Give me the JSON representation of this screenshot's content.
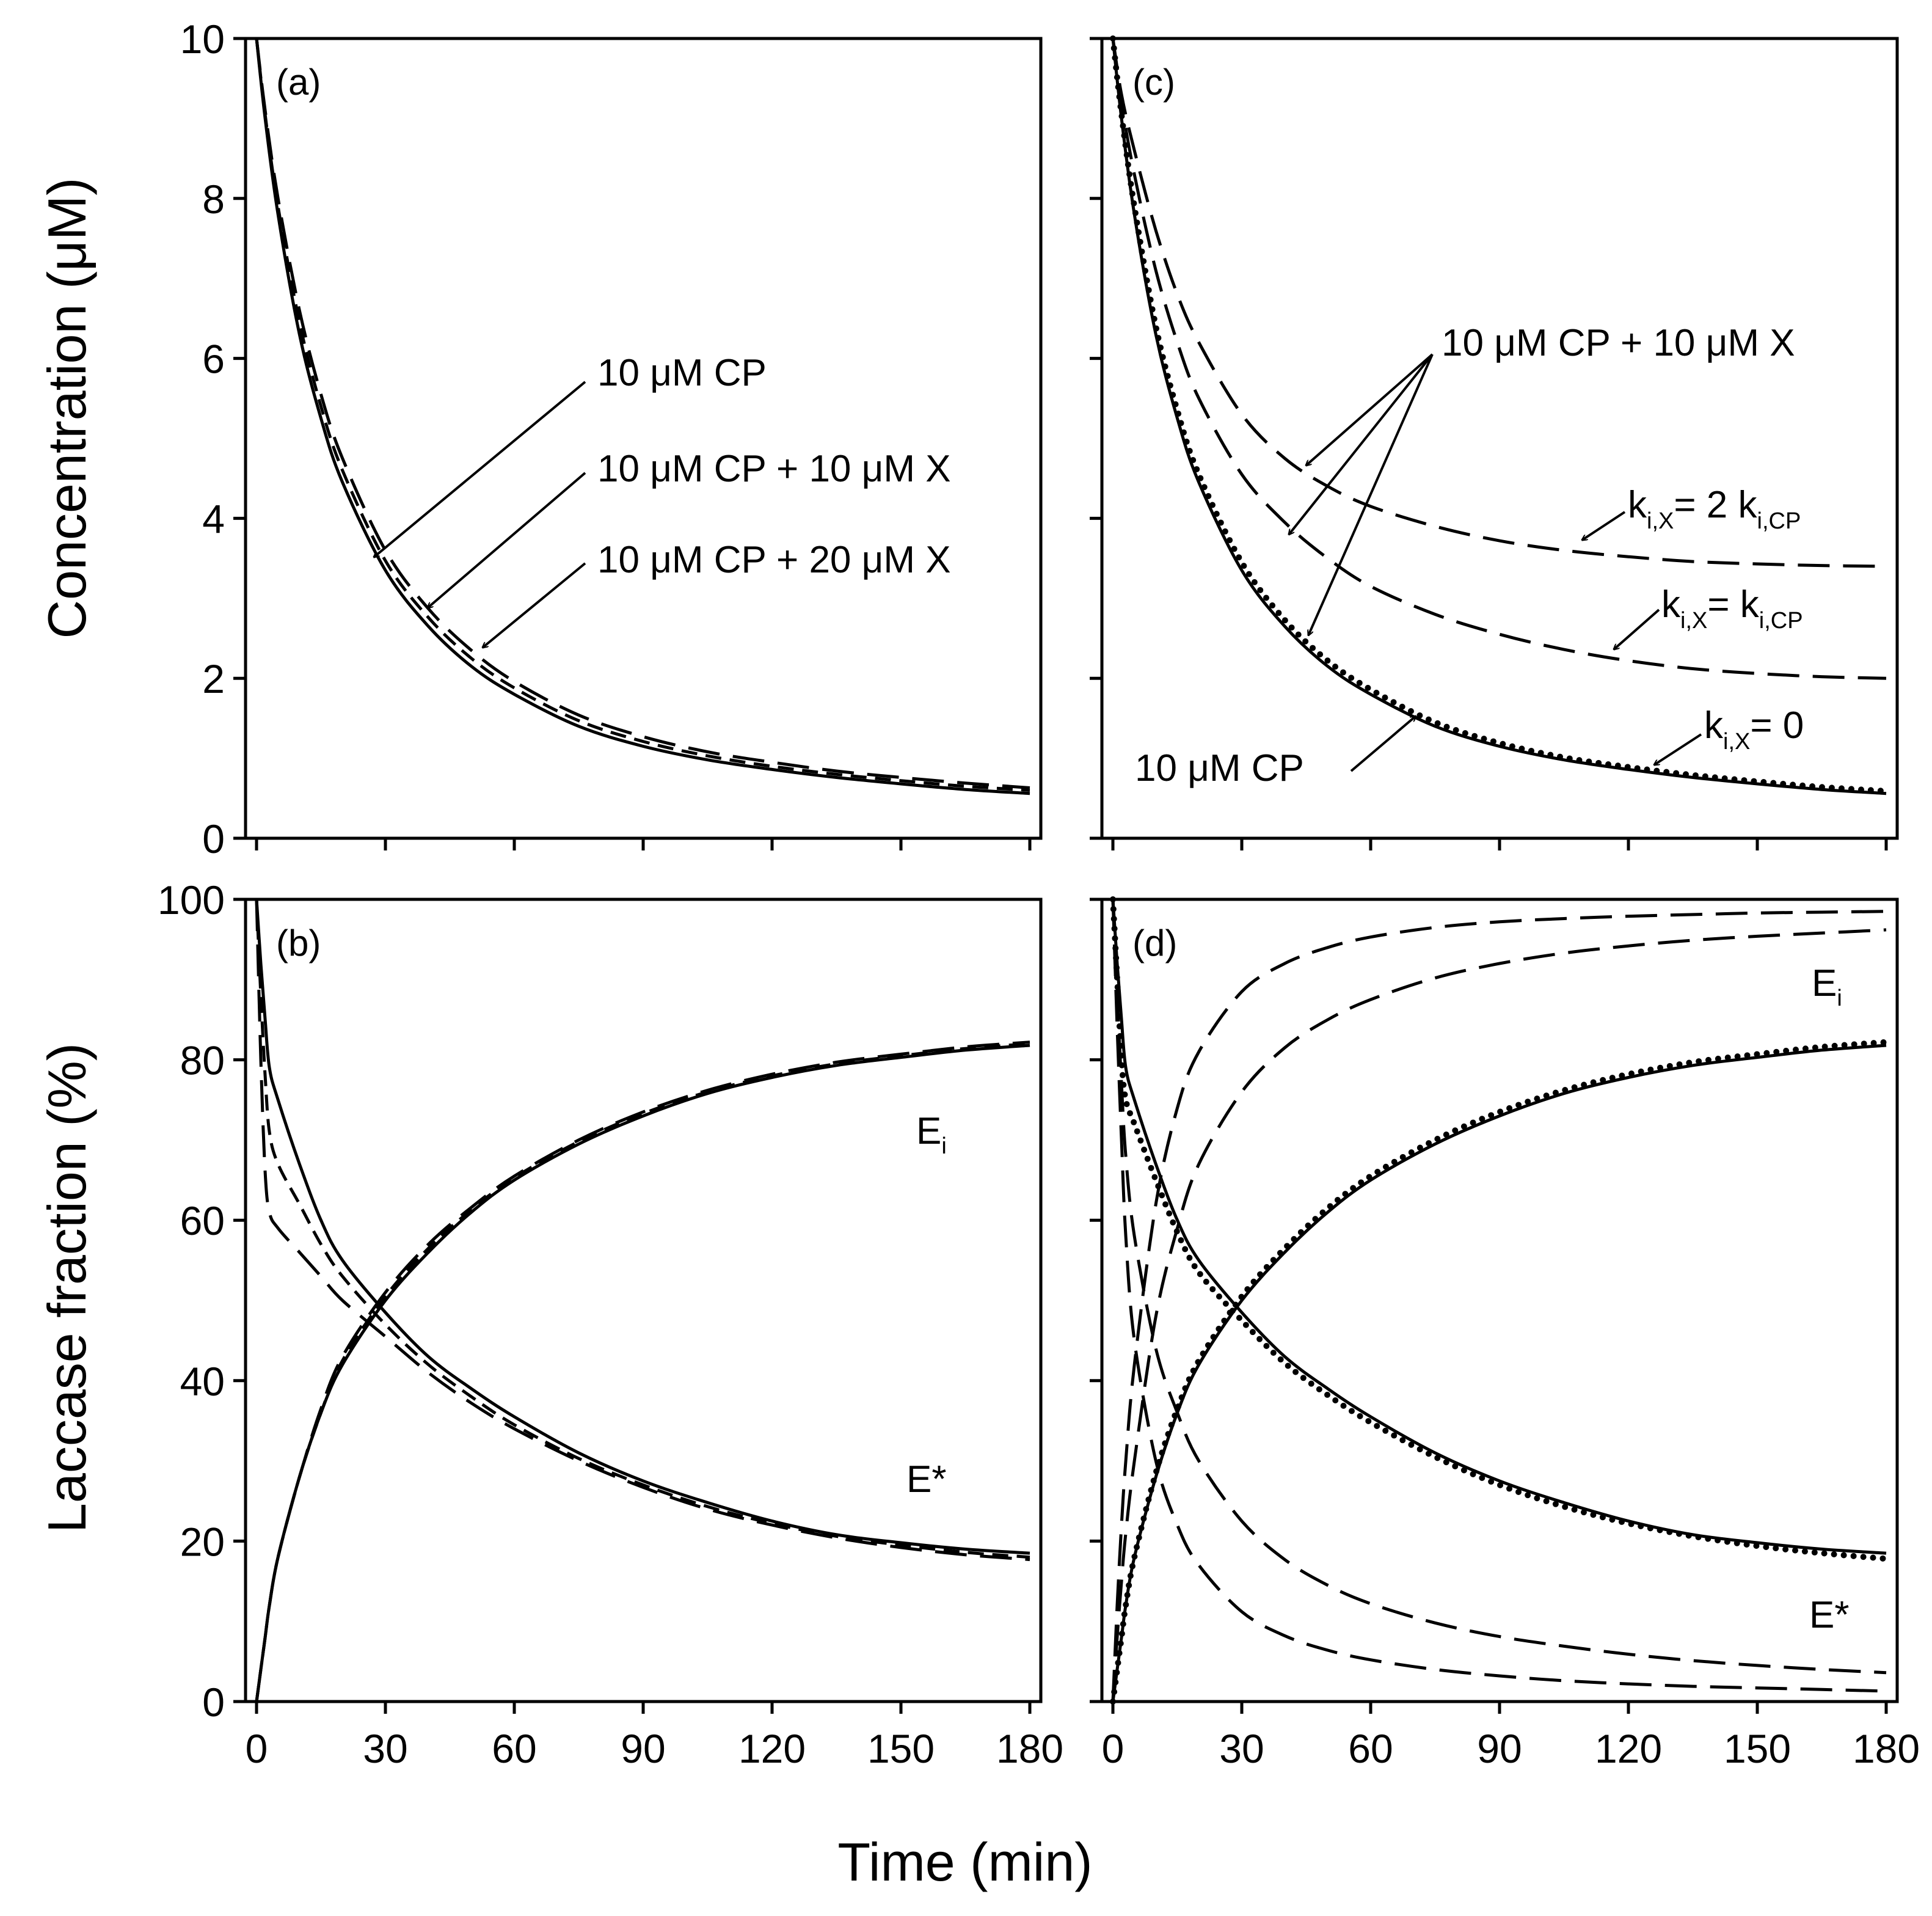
{
  "chart_data": [
    {
      "panel": "(a)",
      "type": "line",
      "ylabel": "Concentration (μM)",
      "xlim": [
        0,
        180
      ],
      "ylim": [
        0,
        10
      ],
      "xticks": [
        0,
        30,
        60,
        90,
        120,
        150,
        180
      ],
      "yticks": [
        0,
        2,
        4,
        6,
        8,
        10
      ],
      "x": [
        0,
        2,
        5,
        10,
        15,
        20,
        30,
        40,
        50,
        60,
        75,
        90,
        105,
        120,
        135,
        150,
        165,
        180
      ],
      "series": [
        {
          "name": "10 μM CP",
          "style": "solid",
          "values": [
            10,
            9.0,
            7.8,
            6.3,
            5.25,
            4.45,
            3.35,
            2.65,
            2.15,
            1.8,
            1.4,
            1.15,
            0.98,
            0.86,
            0.76,
            0.68,
            0.61,
            0.56
          ]
        },
        {
          "name": "10 μM CP + 10 μM X",
          "style": "dashed",
          "values": [
            10,
            9.05,
            7.9,
            6.45,
            5.4,
            4.6,
            3.47,
            2.76,
            2.25,
            1.88,
            1.47,
            1.21,
            1.03,
            0.9,
            0.8,
            0.72,
            0.65,
            0.6
          ]
        },
        {
          "name": "10 μM CP + 20 μM X",
          "style": "longdash",
          "values": [
            10,
            9.1,
            8.0,
            6.6,
            5.55,
            4.75,
            3.6,
            2.87,
            2.35,
            1.96,
            1.54,
            1.27,
            1.08,
            0.95,
            0.84,
            0.76,
            0.69,
            0.63
          ]
        }
      ],
      "annotations": [
        "10 μM CP",
        "10 μM CP + 10 μM X",
        "10 μM CP + 20 μM X"
      ]
    },
    {
      "panel": "(b)",
      "type": "line",
      "ylabel": "Laccase fraction (%)",
      "xlabel": "Time (min)",
      "xlim": [
        0,
        180
      ],
      "ylim": [
        0,
        100
      ],
      "xticks": [
        0,
        30,
        60,
        90,
        120,
        150,
        180
      ],
      "yticks": [
        0,
        20,
        40,
        60,
        80,
        100
      ],
      "x": [
        0,
        1,
        2,
        3,
        5,
        10,
        15,
        20,
        30,
        40,
        50,
        60,
        75,
        90,
        105,
        120,
        135,
        150,
        165,
        180
      ],
      "series": [
        {
          "name": "E_i (10 μM CP)",
          "style": "solid",
          "values": [
            0,
            4,
            8,
            12,
            18,
            28,
            36,
            42,
            50,
            56,
            61,
            65,
            69.5,
            73,
            75.8,
            77.8,
            79.3,
            80.3,
            81.2,
            81.8
          ]
        },
        {
          "name": "E_i (10 μM CP + 10 μM X)",
          "style": "dashed",
          "values": [
            0,
            4,
            8,
            12,
            18,
            28,
            36,
            42.5,
            50.5,
            56.5,
            61.3,
            65.3,
            69.8,
            73.3,
            76,
            78,
            79.5,
            80.5,
            81.4,
            82
          ]
        },
        {
          "name": "E_i (10 μM CP + 20 μM X)",
          "style": "longdash",
          "values": [
            0,
            4,
            8,
            12,
            18,
            28,
            36.5,
            43,
            51,
            57,
            61.6,
            65.5,
            70,
            73.5,
            76.2,
            78.2,
            79.7,
            80.7,
            81.6,
            82.2
          ]
        },
        {
          "name": "E* (10 μM CP)",
          "style": "solid",
          "values": [
            100,
            92,
            85,
            79,
            75,
            67,
            60,
            55,
            48.5,
            43,
            39,
            35.5,
            31,
            27.5,
            24.8,
            22.5,
            20.8,
            19.8,
            19,
            18.5
          ]
        },
        {
          "name": "E* (10 μM CP + 10 μM X)",
          "style": "dashed",
          "values": [
            100,
            88,
            78,
            71,
            67,
            62,
            57,
            53,
            47,
            42,
            38,
            34.5,
            30.3,
            27,
            24.3,
            22.2,
            20.6,
            19.5,
            18.6,
            18
          ]
        },
        {
          "name": "E* (10 μM CP + 20 μM X)",
          "style": "longdash",
          "values": [
            100,
            80,
            66,
            61,
            59,
            56,
            53,
            50,
            45.5,
            41,
            37.2,
            34,
            30,
            26.7,
            24,
            22,
            20.4,
            19.2,
            18.3,
            17.7
          ]
        }
      ],
      "annotations": [
        "E",
        "i",
        "E*"
      ]
    },
    {
      "panel": "(c)",
      "type": "line",
      "xlim": [
        0,
        180
      ],
      "ylim": [
        0,
        10
      ],
      "xticks": [
        0,
        30,
        60,
        90,
        120,
        150,
        180
      ],
      "yticks": [
        0,
        2,
        4,
        6,
        8,
        10
      ],
      "x": [
        0,
        2,
        5,
        10,
        15,
        20,
        30,
        40,
        50,
        60,
        75,
        90,
        105,
        120,
        135,
        150,
        165,
        180
      ],
      "series": [
        {
          "name": "10 μM CP",
          "style": "solid",
          "values": [
            10,
            9.0,
            7.8,
            6.3,
            5.25,
            4.45,
            3.35,
            2.65,
            2.15,
            1.8,
            1.4,
            1.15,
            0.98,
            0.86,
            0.76,
            0.68,
            0.61,
            0.56
          ]
        },
        {
          "name": "k_i,X = 0",
          "style": "dotted",
          "values": [
            10,
            9.05,
            7.9,
            6.4,
            5.35,
            4.55,
            3.45,
            2.73,
            2.22,
            1.86,
            1.45,
            1.19,
            1.01,
            0.89,
            0.79,
            0.71,
            0.64,
            0.59
          ]
        },
        {
          "name": "k_i,X = k_i,CP",
          "style": "longdash",
          "values": [
            10,
            9.2,
            8.3,
            7.1,
            6.2,
            5.5,
            4.55,
            3.95,
            3.5,
            3.15,
            2.8,
            2.55,
            2.36,
            2.22,
            2.12,
            2.06,
            2.02,
            2.0
          ]
        },
        {
          "name": "k_i,X = 2 k_i,CP",
          "style": "longdash",
          "values": [
            10,
            9.3,
            8.6,
            7.6,
            6.8,
            6.2,
            5.3,
            4.75,
            4.4,
            4.15,
            3.9,
            3.72,
            3.6,
            3.52,
            3.46,
            3.43,
            3.41,
            3.4
          ]
        }
      ],
      "annotations": [
        "10 μM CP + 10 μM X",
        "10 μM CP",
        "k",
        "i,X",
        "= 2 k",
        "i,CP",
        "k",
        "i,X",
        "=  k",
        "i,CP",
        "k",
        "i,X",
        "= 0"
      ]
    },
    {
      "panel": "(d)",
      "type": "line",
      "xlabel": "Time (min)",
      "xlim": [
        0,
        180
      ],
      "ylim": [
        0,
        100
      ],
      "xticks": [
        0,
        30,
        60,
        90,
        120,
        150,
        180
      ],
      "yticks": [
        0,
        20,
        40,
        60,
        80,
        100
      ],
      "x": [
        0,
        1,
        2,
        3,
        5,
        10,
        15,
        20,
        30,
        40,
        50,
        60,
        75,
        90,
        105,
        120,
        135,
        150,
        165,
        180
      ],
      "series": [
        {
          "name": "E_i (10 μM CP)",
          "style": "solid",
          "values": [
            0,
            4,
            8,
            12,
            18,
            28,
            36,
            42,
            50,
            56,
            61,
            65,
            69.5,
            73,
            75.8,
            77.8,
            79.3,
            80.3,
            81.2,
            81.8
          ]
        },
        {
          "name": "E_i (k_i,X = 0)",
          "style": "dotted",
          "values": [
            0,
            4,
            8,
            12,
            18,
            28.5,
            36.5,
            42.5,
            50.5,
            56.5,
            61.5,
            65.5,
            70,
            73.5,
            76.2,
            78.2,
            79.7,
            80.7,
            81.6,
            82.2
          ]
        },
        {
          "name": "E_i (k_i,X = k_i,CP)",
          "style": "longdash",
          "values": [
            0,
            8,
            15,
            21,
            30,
            48,
            59,
            67,
            76,
            81.5,
            85,
            87.5,
            90.2,
            92,
            93.3,
            94.2,
            94.9,
            95.4,
            95.8,
            96.2
          ]
        },
        {
          "name": "E_i (k_i,X = 2 k_i,CP)",
          "style": "longdash",
          "values": [
            0,
            12,
            22,
            30,
            42,
            62,
            74,
            81,
            88.5,
            92,
            94,
            95.3,
            96.5,
            97.2,
            97.6,
            97.9,
            98.1,
            98.3,
            98.4,
            98.5
          ]
        },
        {
          "name": "E* (10 μM CP)",
          "style": "solid",
          "values": [
            100,
            92,
            85,
            79,
            75,
            67,
            60,
            55,
            48.5,
            43,
            39,
            35.5,
            31,
            27.5,
            24.8,
            22.5,
            20.8,
            19.8,
            19,
            18.5
          ]
        },
        {
          "name": "E* (k_i,X = 0)",
          "style": "dotted",
          "values": [
            100,
            90,
            80,
            75,
            72,
            65,
            58.5,
            53.5,
            47.5,
            42.2,
            38.2,
            34.8,
            30.5,
            27,
            24.3,
            22.2,
            20.6,
            19.4,
            18.5,
            17.8
          ]
        },
        {
          "name": "E* (k_i,X = k_i,CP)",
          "style": "longdash",
          "values": [
            100,
            88,
            77,
            68,
            58,
            44,
            36,
            30,
            22.5,
            17.7,
            14.5,
            12.2,
            9.8,
            8.1,
            6.9,
            5.9,
            5.1,
            4.5,
            4.0,
            3.6
          ]
        },
        {
          "name": "E* (k_i,X = 2 k_i,CP)",
          "style": "longdash",
          "values": [
            100,
            84,
            70,
            58,
            45,
            30,
            22,
            17,
            11.2,
            8.2,
            6.4,
            5.2,
            4.0,
            3.2,
            2.6,
            2.2,
            1.9,
            1.7,
            1.5,
            1.3
          ]
        }
      ],
      "annotations": [
        "E",
        "i",
        "E*"
      ]
    }
  ]
}
